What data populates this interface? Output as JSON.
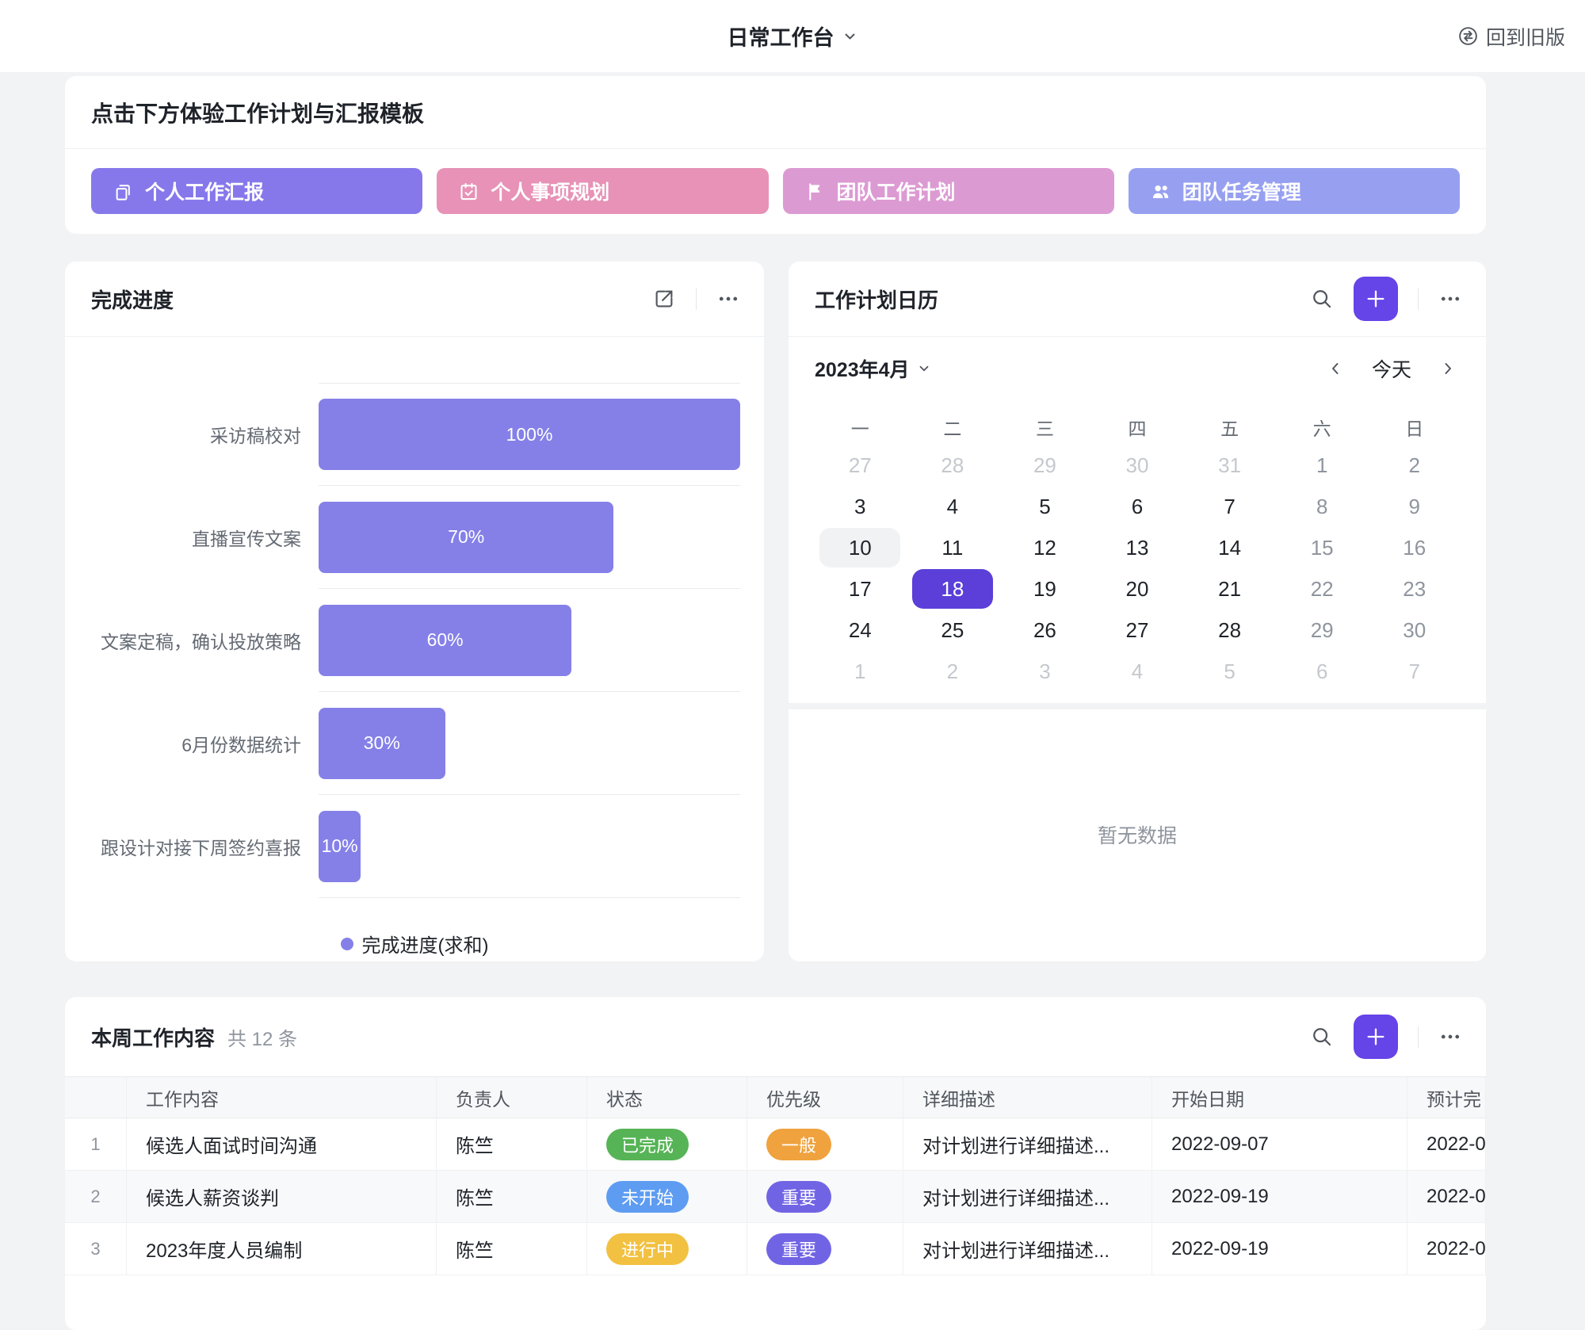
{
  "topbar": {
    "title": "日常工作台",
    "back_label": "回到旧版"
  },
  "colors": {
    "accent": "#6544E8",
    "selected_day": "#5B3FD8",
    "bar": "#8580E8",
    "page_bg": "#F2F3F5"
  },
  "banner": {
    "title": "点击下方体验工作计划与汇报模板",
    "buttons": [
      {
        "label": "个人工作汇报",
        "color": "#8678EB",
        "icon": "copy-icon"
      },
      {
        "label": "个人事项规划",
        "color": "#E792B6",
        "icon": "calendar-check-icon"
      },
      {
        "label": "团队工作计划",
        "color": "#DC9AD3",
        "icon": "flag-icon"
      },
      {
        "label": "团队任务管理",
        "color": "#97A0F0",
        "icon": "people-icon"
      }
    ]
  },
  "progress_card": {
    "title": "完成进度",
    "legend_label": "完成进度(求和)"
  },
  "chart_data": {
    "type": "bar",
    "orientation": "horizontal",
    "title": "完成进度",
    "categories": [
      "采访稿校对",
      "直播宣传文案",
      "文案定稿，确认投放策略",
      "6月份数据统计",
      "跟设计对接下周签约喜报"
    ],
    "values": [
      100,
      70,
      60,
      30,
      10
    ],
    "value_labels": [
      "100%",
      "70%",
      "60%",
      "30%",
      "10%"
    ],
    "series_name": "完成进度(求和)",
    "xlim": [
      0,
      100
    ],
    "bar_color": "#8580E8",
    "grid": false,
    "legend_position": "bottom"
  },
  "calendar_card": {
    "title": "工作计划日历",
    "month_label": "2023年4月",
    "today_label": "今天",
    "weekdays": [
      "一",
      "二",
      "三",
      "四",
      "五",
      "六",
      "日"
    ],
    "weeks": [
      [
        {
          "d": 27,
          "s": "adj"
        },
        {
          "d": 28,
          "s": "adj"
        },
        {
          "d": 29,
          "s": "adj"
        },
        {
          "d": 30,
          "s": "adj"
        },
        {
          "d": 31,
          "s": "adj"
        },
        {
          "d": 1,
          "s": "wk"
        },
        {
          "d": 2,
          "s": "wk"
        }
      ],
      [
        {
          "d": 3,
          "s": "n"
        },
        {
          "d": 4,
          "s": "n"
        },
        {
          "d": 5,
          "s": "n"
        },
        {
          "d": 6,
          "s": "n"
        },
        {
          "d": 7,
          "s": "n"
        },
        {
          "d": 8,
          "s": "wk"
        },
        {
          "d": 9,
          "s": "wk"
        }
      ],
      [
        {
          "d": 10,
          "s": "today"
        },
        {
          "d": 11,
          "s": "n"
        },
        {
          "d": 12,
          "s": "n"
        },
        {
          "d": 13,
          "s": "n"
        },
        {
          "d": 14,
          "s": "n"
        },
        {
          "d": 15,
          "s": "wk"
        },
        {
          "d": 16,
          "s": "wk"
        }
      ],
      [
        {
          "d": 17,
          "s": "n"
        },
        {
          "d": 18,
          "s": "sel"
        },
        {
          "d": 19,
          "s": "n"
        },
        {
          "d": 20,
          "s": "n"
        },
        {
          "d": 21,
          "s": "n"
        },
        {
          "d": 22,
          "s": "wk"
        },
        {
          "d": 23,
          "s": "wk"
        }
      ],
      [
        {
          "d": 24,
          "s": "n"
        },
        {
          "d": 25,
          "s": "n"
        },
        {
          "d": 26,
          "s": "n"
        },
        {
          "d": 27,
          "s": "n"
        },
        {
          "d": 28,
          "s": "n"
        },
        {
          "d": 29,
          "s": "wk"
        },
        {
          "d": 30,
          "s": "wk"
        }
      ],
      [
        {
          "d": 1,
          "s": "adj"
        },
        {
          "d": 2,
          "s": "adj"
        },
        {
          "d": 3,
          "s": "adj"
        },
        {
          "d": 4,
          "s": "adj"
        },
        {
          "d": 5,
          "s": "adj"
        },
        {
          "d": 6,
          "s": "adj"
        },
        {
          "d": 7,
          "s": "adj"
        }
      ]
    ],
    "empty_text": "暂无数据"
  },
  "table_card": {
    "title": "本周工作内容",
    "count_label": "共 12 条",
    "columns": [
      "工作内容",
      "负责人",
      "状态",
      "优先级",
      "详细描述",
      "开始日期",
      "预计完"
    ],
    "rows": [
      {
        "num": "1",
        "task": "候选人面试时间沟通",
        "owner": "陈竺",
        "status": {
          "label": "已完成",
          "color": "#56B456"
        },
        "priority": {
          "label": "一般",
          "color": "#EFA23E"
        },
        "desc": "对计划进行详细描述...",
        "start": "2022-09-07",
        "due": "2022-0"
      },
      {
        "num": "2",
        "task": "候选人薪资谈判",
        "owner": "陈竺",
        "status": {
          "label": "未开始",
          "color": "#5E9CF2"
        },
        "priority": {
          "label": "重要",
          "color": "#7164E4"
        },
        "desc": "对计划进行详细描述...",
        "start": "2022-09-19",
        "due": "2022-0"
      },
      {
        "num": "3",
        "task": "2023年度人员编制",
        "owner": "陈竺",
        "status": {
          "label": "进行中",
          "color": "#F2C141"
        },
        "priority": {
          "label": "重要",
          "color": "#7164E4"
        },
        "desc": "对计划进行详细描述...",
        "start": "2022-09-19",
        "due": "2022-0"
      }
    ]
  }
}
